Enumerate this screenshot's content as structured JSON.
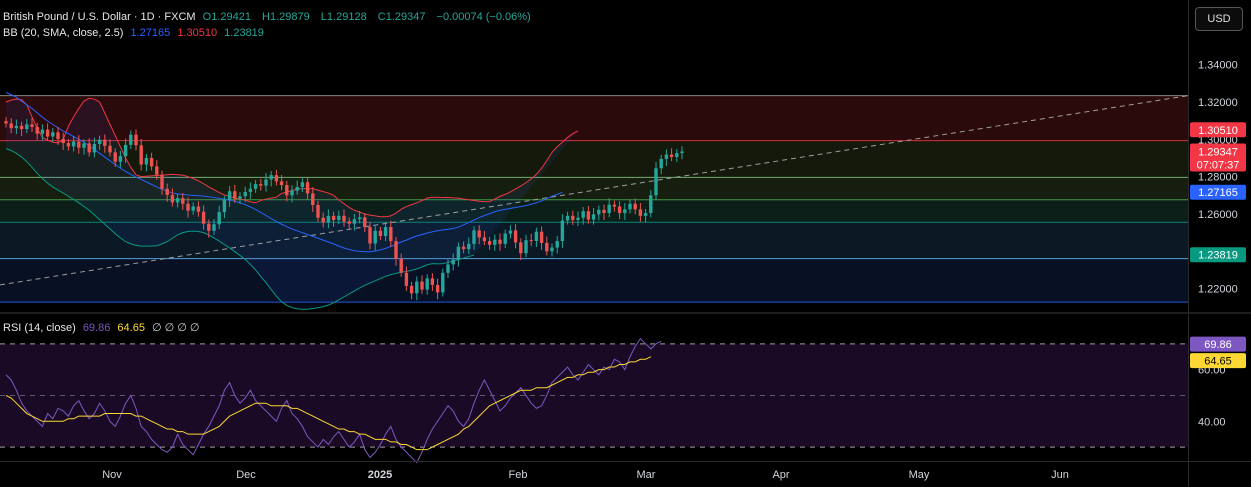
{
  "legend": {
    "symbol": "British Pound / U.S. Dollar · 1D · FXCM",
    "open_label": "O",
    "open": "1.29421",
    "high_label": "H",
    "high": "1.29879",
    "low_label": "L",
    "low": "1.29128",
    "close_label": "C",
    "close": "1.29347",
    "change": "−0.00074 (−0.06%)",
    "bb_label": "BB (20, SMA, close, 2.5)",
    "bb_basis": "1.27165",
    "bb_upper": "1.30510",
    "bb_lower": "1.23819",
    "rsi_label": "RSI (14, close)",
    "rsi_value": "69.86",
    "rsi_ma": "64.65",
    "rsi_extra": "∅ ∅ ∅ ∅"
  },
  "currency_button": "USD",
  "price_axis_ticks": [
    "1.34000",
    "1.32000",
    "1.30000",
    "1.28000",
    "1.26000",
    "1.22000"
  ],
  "price_tags": {
    "upper": "1.30510",
    "close": "1.29347",
    "countdown": "07:07:37",
    "basis": "1.27165",
    "lower": "1.23819"
  },
  "rsi_axis_ticks": [
    "60.00",
    "40.00"
  ],
  "rsi_tags": {
    "rsi": "69.86",
    "ma": "64.65"
  },
  "time_axis_labels": [
    "Nov",
    "Dec",
    "2025",
    "Feb",
    "Mar",
    "Apr",
    "May",
    "Jun"
  ],
  "colors": {
    "up": "#26a69a",
    "down": "#ef5350",
    "upper_band": "#f23645",
    "basis": "#2962ff",
    "lower_band": "#089981",
    "rsi": "#7e57c2",
    "rsi_ma": "#fdd835"
  },
  "chart_data": {
    "type": "candlestick",
    "title": "British Pound / U.S. Dollar · 1D · FXCM",
    "y_range": [
      1.2075,
      1.3532
    ],
    "y_ticks": [
      1.34,
      1.32,
      1.3,
      1.28,
      1.26,
      1.22
    ],
    "x_labels": [
      "Nov",
      "Dec",
      "2025",
      "Feb",
      "Mar",
      "Apr",
      "May",
      "Jun"
    ],
    "close": [
      1.3085,
      1.306,
      1.3072,
      1.3055,
      1.308,
      1.3066,
      1.303,
      1.3052,
      1.3015,
      1.3038,
      1.3002,
      1.298,
      1.2962,
      1.2988,
      1.2955,
      1.2978,
      1.293,
      1.2975,
      1.2998,
      1.2965,
      1.293,
      1.288,
      1.291,
      1.297,
      1.3025,
      1.2968,
      1.2865,
      1.29,
      1.2855,
      1.281,
      1.2735,
      1.2702,
      1.2662,
      1.2685,
      1.2655,
      1.2618,
      1.264,
      1.2612,
      1.2548,
      1.251,
      1.2545,
      1.261,
      1.2675,
      1.2722,
      1.2682,
      1.2695,
      1.2718,
      1.2735,
      1.276,
      1.2752,
      1.2785,
      1.2808,
      1.2775,
      1.2755,
      1.27,
      1.2725,
      1.2745,
      1.277,
      1.271,
      1.2648,
      1.258,
      1.2555,
      1.259,
      1.2568,
      1.259,
      1.256,
      1.2548,
      1.2572,
      1.2582,
      1.253,
      1.2442,
      1.251,
      1.2482,
      1.253,
      1.2455,
      1.236,
      1.2285,
      1.2215,
      1.2175,
      1.2238,
      1.2195,
      1.2255,
      1.222,
      1.218,
      1.2285,
      1.233,
      1.2355,
      1.2425,
      1.2412,
      1.244,
      1.2512,
      1.2475,
      1.2455,
      1.2435,
      1.2462,
      1.244,
      1.2495,
      1.2512,
      1.2448,
      1.239,
      1.246,
      1.2455,
      1.2505,
      1.2445,
      1.24,
      1.242,
      1.2455,
      1.2565,
      1.259,
      1.2568,
      1.258,
      1.2615,
      1.257,
      1.2598,
      1.2622,
      1.2605,
      1.265,
      1.264,
      1.2605,
      1.2625,
      1.2655,
      1.2625,
      1.259,
      1.2605,
      1.27,
      1.2845,
      1.2895,
      1.2918,
      1.2905,
      1.2926,
      1.2935
    ],
    "bb_upper": [
      1.32,
      1.321,
      1.3215,
      1.3212,
      1.3185,
      1.312,
      1.306,
      1.301,
      1.2995,
      1.2985,
      1.298,
      1.3,
      1.307,
      1.312,
      1.3165,
      1.3205,
      1.322,
      1.3215,
      1.32,
      1.314,
      1.308,
      1.302,
      1.296,
      1.29,
      1.285,
      1.281,
      1.28,
      1.2802,
      1.2804,
      1.2806,
      1.2808,
      1.281,
      1.2812,
      1.281,
      1.2808,
      1.28,
      1.279,
      1.2778,
      1.2762,
      1.2745,
      1.273,
      1.2715,
      1.2702,
      1.2695,
      1.2685,
      1.268,
      1.2675,
      1.2665,
      1.266,
      1.2672,
      1.268,
      1.2685,
      1.269,
      1.271,
      1.2718,
      1.2726,
      1.2734,
      1.2736,
      1.2736,
      1.2735,
      1.2728,
      1.272,
      1.2712,
      1.27,
      1.2675,
      1.2655,
      1.2635,
      1.262,
      1.261,
      1.26,
      1.2594,
      1.259,
      1.2585,
      1.2585,
      1.259,
      1.2605,
      1.2625,
      1.264,
      1.265,
      1.266,
      1.2672,
      1.2685,
      1.269,
      1.269,
      1.2688,
      1.2688,
      1.2686,
      1.2685,
      1.268,
      1.2676,
      1.2672,
      1.2668,
      1.2666,
      1.2666,
      1.268,
      1.2695,
      1.2705,
      1.2718,
      1.2734,
      1.275,
      1.2768,
      1.2788,
      1.2812,
      1.2845,
      1.2886,
      1.293,
      1.296,
      1.2985,
      1.301,
      1.303,
      1.3045
    ],
    "bb_basis": [
      1.325,
      1.324,
      1.3225,
      1.3205,
      1.3185,
      1.3165,
      1.3142,
      1.3118,
      1.3098,
      1.308,
      1.3062,
      1.3045,
      1.303,
      1.3015,
      1.3,
      1.2985,
      1.2965,
      1.2945,
      1.2925,
      1.2905,
      1.2885,
      1.2865,
      1.2845,
      1.2828,
      1.2812,
      1.2798,
      1.2785,
      1.2772,
      1.2758,
      1.2745,
      1.2732,
      1.2722,
      1.2712,
      1.2708,
      1.2705,
      1.2702,
      1.27,
      1.2698,
      1.2696,
      1.2692,
      1.2688,
      1.2684,
      1.268,
      1.2674,
      1.2668,
      1.266,
      1.265,
      1.2638,
      1.2624,
      1.2608,
      1.2592,
      1.2575,
      1.256,
      1.2545,
      1.2532,
      1.252,
      1.251,
      1.25,
      1.249,
      1.248,
      1.247,
      1.246,
      1.245,
      1.244,
      1.2428,
      1.2418,
      1.241,
      1.2403,
      1.24,
      1.2398,
      1.2398,
      1.2402,
      1.2408,
      1.2416,
      1.2426,
      1.2438,
      1.245,
      1.246,
      1.2472,
      1.2482,
      1.249,
      1.2498,
      1.2505,
      1.251,
      1.2514,
      1.2518,
      1.2522,
      1.253,
      1.2542,
      1.2555,
      1.2568,
      1.258,
      1.2592,
      1.2602,
      1.2612,
      1.262,
      1.2625,
      1.263,
      1.2635,
      1.264,
      1.2645,
      1.2652,
      1.266,
      1.267,
      1.2682,
      1.2695,
      1.2705,
      1.2716
    ],
    "bb_lower": [
      1.295,
      1.294,
      1.2925,
      1.2905,
      1.288,
      1.285,
      1.2818,
      1.279,
      1.2765,
      1.2745,
      1.2728,
      1.2712,
      1.2695,
      1.2678,
      1.266,
      1.264,
      1.262,
      1.2595,
      1.257,
      1.2545,
      1.252,
      1.2495,
      1.2472,
      1.2452,
      1.244,
      1.2432,
      1.2428,
      1.2428,
      1.2428,
      1.243,
      1.244,
      1.2452,
      1.247,
      1.2488,
      1.25,
      1.2506,
      1.2508,
      1.2506,
      1.25,
      1.2488,
      1.2472,
      1.2455,
      1.2436,
      1.2418,
      1.2398,
      1.2378,
      1.2356,
      1.233,
      1.23,
      1.2265,
      1.2232,
      1.2196,
      1.216,
      1.213,
      1.211,
      1.2098,
      1.2092,
      1.209,
      1.209,
      1.2094,
      1.2098,
      1.2104,
      1.2112,
      1.2124,
      1.214,
      1.2156,
      1.2172,
      1.2188,
      1.2204,
      1.2218,
      1.223,
      1.2242,
      1.2254,
      1.2266,
      1.2275,
      1.2282,
      1.2288,
      1.2292,
      1.2298,
      1.2306,
      1.2316,
      1.2328,
      1.2334,
      1.2333,
      1.2334,
      1.234,
      1.2348,
      1.2356,
      1.2364,
      1.2372,
      1.238
    ],
    "fib_levels": [
      1.3234,
      1.2993,
      1.2796,
      1.2676,
      1.2556,
      1.2361,
      1.2128
    ],
    "trendline": {
      "start": 1.222,
      "end": 1.3234
    },
    "rsi": {
      "range": [
        25,
        80
      ],
      "ticks": [
        60,
        40
      ],
      "levels": [
        70,
        50,
        30
      ],
      "rsi": [
        58,
        56,
        52,
        47,
        44,
        42,
        40,
        38,
        43,
        41,
        45,
        44,
        42,
        46,
        48,
        44,
        41,
        43,
        47,
        44,
        40,
        38,
        42,
        47,
        50,
        45,
        38,
        36,
        33,
        31,
        29,
        28,
        30,
        35,
        31,
        29,
        27,
        31,
        35,
        38,
        42,
        46,
        52,
        55,
        50,
        47,
        49,
        52,
        48,
        46,
        44,
        42,
        40,
        45,
        48,
        43,
        41,
        38,
        34,
        32,
        30,
        33,
        31,
        34,
        36,
        33,
        30,
        32,
        35,
        29,
        26,
        28,
        31,
        35,
        38,
        33,
        30,
        28,
        26,
        24,
        28,
        33,
        37,
        40,
        43,
        46,
        44,
        40,
        38,
        41,
        47,
        52,
        56,
        52,
        48,
        44,
        46,
        49,
        51,
        53,
        50,
        47,
        45,
        46,
        50,
        55,
        57,
        59,
        61,
        58,
        56,
        59,
        62,
        60,
        58,
        61,
        60,
        64,
        63,
        60,
        65,
        69,
        72,
        70,
        68,
        70,
        71
      ],
      "rsi_ma": [
        50,
        49,
        47,
        45,
        43,
        42,
        41,
        40,
        40,
        40,
        40,
        40,
        41,
        41,
        42,
        42,
        42,
        42,
        42,
        43,
        43,
        43,
        43,
        43,
        43,
        42,
        42,
        41,
        40,
        39,
        38,
        37,
        37,
        36,
        36,
        35,
        35,
        35,
        35,
        36,
        37,
        38,
        40,
        42,
        43,
        44,
        45,
        46,
        47,
        47,
        47,
        46,
        46,
        46,
        46,
        45,
        45,
        44,
        43,
        42,
        41,
        40,
        39,
        38,
        37,
        37,
        36,
        36,
        35,
        35,
        34,
        33,
        33,
        33,
        32,
        32,
        31,
        31,
        30,
        29,
        29,
        29,
        30,
        31,
        32,
        33,
        34,
        35,
        37,
        38,
        40,
        42,
        44,
        46,
        47,
        48,
        49,
        50,
        51,
        52,
        52,
        52,
        53,
        53,
        53,
        54,
        55,
        56,
        57,
        57,
        58,
        58,
        59,
        59,
        60,
        60,
        61,
        61,
        62,
        62,
        63,
        63,
        64,
        64,
        65
      ]
    }
  }
}
